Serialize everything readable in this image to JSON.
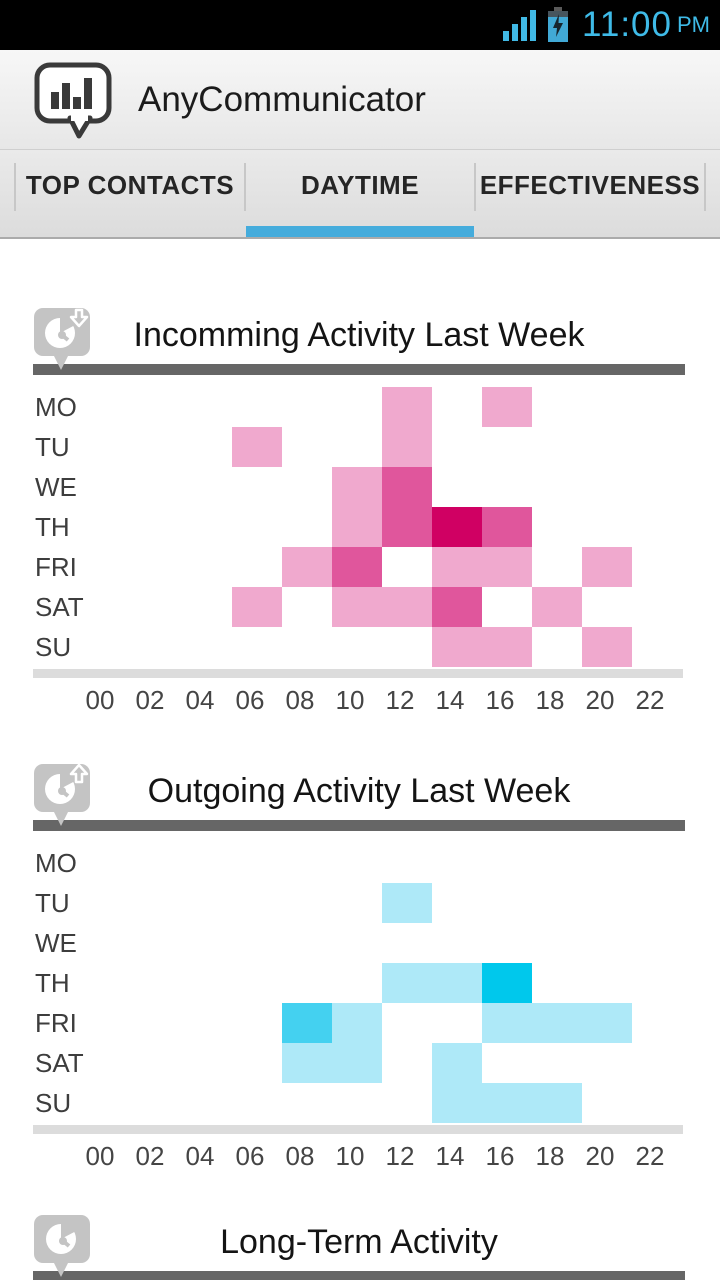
{
  "status_bar": {
    "time": "11:00",
    "meridiem": "PM",
    "icons": [
      "signal-strength-icon",
      "battery-charging-icon"
    ]
  },
  "header": {
    "app_title": "AnyCommunicator",
    "app_icon": "bar-chart-speech-bubble-icon"
  },
  "tabs": [
    {
      "label": "TOP CONTACTS",
      "selected": false
    },
    {
      "label": "DAYTIME",
      "selected": true
    },
    {
      "label": "EFFECTIVENESS",
      "selected": false
    }
  ],
  "colors": {
    "status_blue": "#3FBBE8",
    "tab_underline": "#45ACDC",
    "section_rule": "#666666",
    "axis_strip": "#DCDCDC"
  },
  "chart_data": [
    {
      "type": "heatmap",
      "title": "Incomming Activity Last Week",
      "icon": "clock-arrow-down-bubble-icon",
      "rows": [
        "MO",
        "TU",
        "WE",
        "TH",
        "FRI",
        "SAT",
        "SU"
      ],
      "hours": [
        0,
        2,
        4,
        6,
        8,
        10,
        12,
        14,
        16,
        18,
        20,
        22
      ],
      "x_ticks": [
        "00",
        "02",
        "04",
        "06",
        "08",
        "10",
        "12",
        "14",
        "16",
        "18",
        "20",
        "22"
      ],
      "palette": [
        "#F0A9CE",
        "#E0569C",
        "#D00063"
      ],
      "level_meaning": [
        "low",
        "medium",
        "high"
      ],
      "cells": [
        {
          "day": "MO",
          "hour": 12,
          "level": 1
        },
        {
          "day": "MO",
          "hour": 16,
          "level": 1
        },
        {
          "day": "TU",
          "hour": 6,
          "level": 1
        },
        {
          "day": "TU",
          "hour": 12,
          "level": 1
        },
        {
          "day": "WE",
          "hour": 10,
          "level": 1
        },
        {
          "day": "WE",
          "hour": 12,
          "level": 2
        },
        {
          "day": "TH",
          "hour": 10,
          "level": 1
        },
        {
          "day": "TH",
          "hour": 12,
          "level": 2
        },
        {
          "day": "TH",
          "hour": 14,
          "level": 3
        },
        {
          "day": "TH",
          "hour": 16,
          "level": 2
        },
        {
          "day": "FRI",
          "hour": 8,
          "level": 1
        },
        {
          "day": "FRI",
          "hour": 10,
          "level": 2
        },
        {
          "day": "FRI",
          "hour": 14,
          "level": 1
        },
        {
          "day": "FRI",
          "hour": 16,
          "level": 1
        },
        {
          "day": "FRI",
          "hour": 20,
          "level": 1
        },
        {
          "day": "SAT",
          "hour": 6,
          "level": 1
        },
        {
          "day": "SAT",
          "hour": 10,
          "level": 1
        },
        {
          "day": "SAT",
          "hour": 12,
          "level": 1
        },
        {
          "day": "SAT",
          "hour": 14,
          "level": 2
        },
        {
          "day": "SAT",
          "hour": 18,
          "level": 1
        },
        {
          "day": "SU",
          "hour": 14,
          "level": 1
        },
        {
          "day": "SU",
          "hour": 16,
          "level": 1
        },
        {
          "day": "SU",
          "hour": 20,
          "level": 1
        }
      ]
    },
    {
      "type": "heatmap",
      "title": "Outgoing Activity Last Week",
      "icon": "clock-arrow-up-bubble-icon",
      "rows": [
        "MO",
        "TU",
        "WE",
        "TH",
        "FRI",
        "SAT",
        "SU"
      ],
      "hours": [
        0,
        2,
        4,
        6,
        8,
        10,
        12,
        14,
        16,
        18,
        20,
        22
      ],
      "x_ticks": [
        "00",
        "02",
        "04",
        "06",
        "08",
        "10",
        "12",
        "14",
        "16",
        "18",
        "20",
        "22"
      ],
      "palette": [
        "#AEE9F8",
        "#44D1F0",
        "#00C8EC"
      ],
      "level_meaning": [
        "low",
        "medium",
        "high"
      ],
      "cells": [
        {
          "day": "TU",
          "hour": 12,
          "level": 1
        },
        {
          "day": "TH",
          "hour": 12,
          "level": 1
        },
        {
          "day": "TH",
          "hour": 14,
          "level": 1
        },
        {
          "day": "TH",
          "hour": 16,
          "level": 3
        },
        {
          "day": "FRI",
          "hour": 8,
          "level": 2
        },
        {
          "day": "FRI",
          "hour": 10,
          "level": 1
        },
        {
          "day": "FRI",
          "hour": 16,
          "level": 1
        },
        {
          "day": "FRI",
          "hour": 18,
          "level": 1
        },
        {
          "day": "FRI",
          "hour": 20,
          "level": 1
        },
        {
          "day": "SAT",
          "hour": 8,
          "level": 1
        },
        {
          "day": "SAT",
          "hour": 10,
          "level": 1
        },
        {
          "day": "SAT",
          "hour": 14,
          "level": 1
        },
        {
          "day": "SU",
          "hour": 14,
          "level": 1
        },
        {
          "day": "SU",
          "hour": 16,
          "level": 1
        },
        {
          "day": "SU",
          "hour": 18,
          "level": 1
        }
      ]
    },
    {
      "type": "heatmap",
      "title": "Long-Term Activity",
      "icon": "clock-bubble-icon"
    }
  ]
}
